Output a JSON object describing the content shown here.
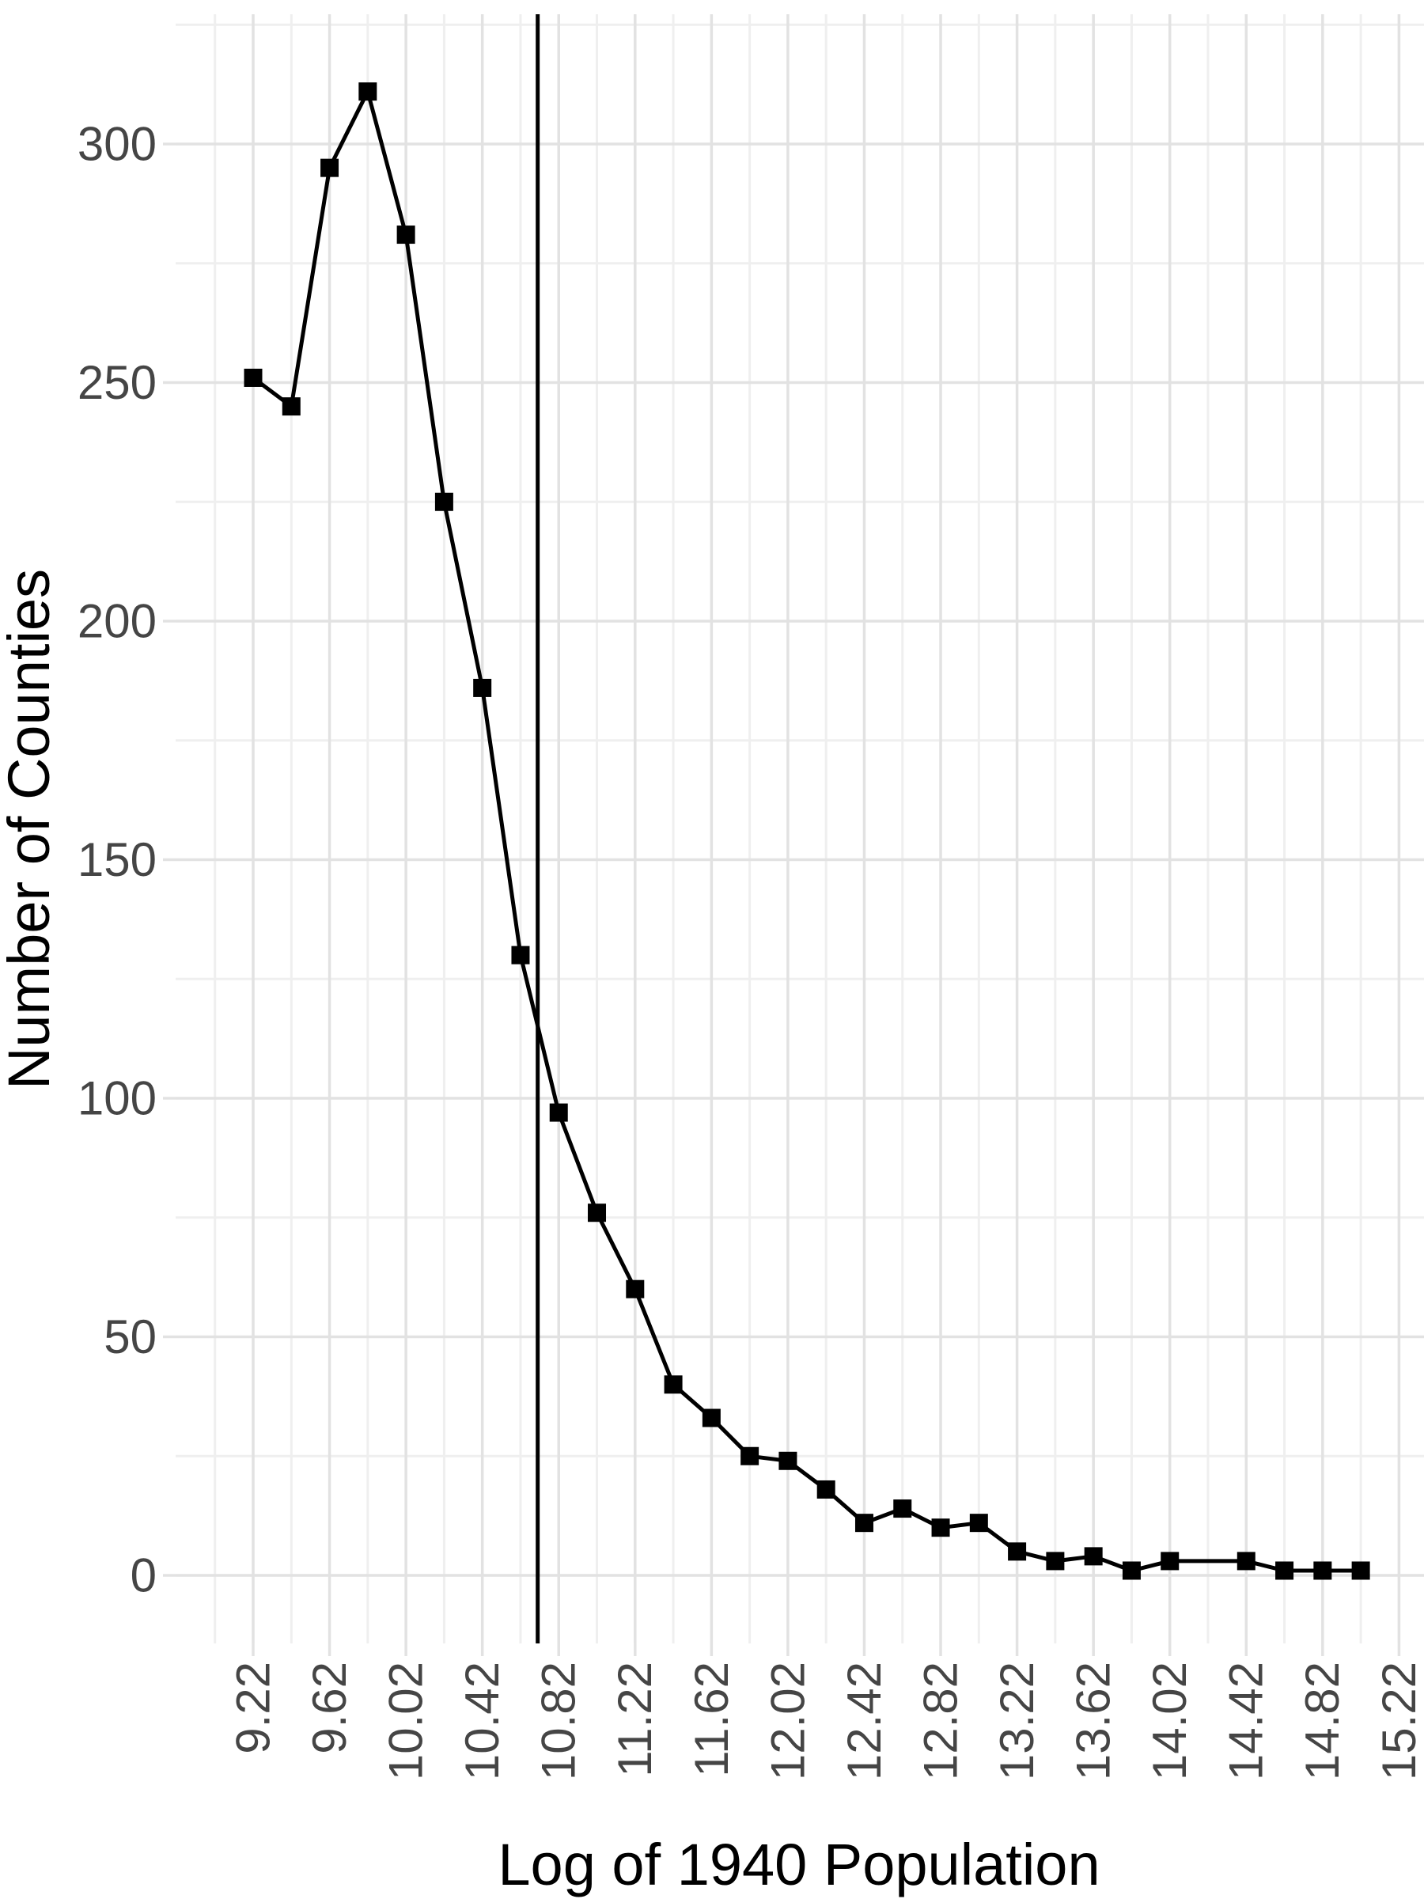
{
  "chart_data": {
    "type": "line",
    "title": "",
    "xlabel": "Log of 1940 Population",
    "ylabel": "Number of Counties",
    "x": [
      9.22,
      9.42,
      9.62,
      9.82,
      10.02,
      10.22,
      10.42,
      10.62,
      10.82,
      11.02,
      11.22,
      11.42,
      11.62,
      11.82,
      12.02,
      12.22,
      12.42,
      12.62,
      12.82,
      13.02,
      13.22,
      13.42,
      13.62,
      13.82,
      14.02,
      14.42,
      14.62,
      14.82,
      15.02
    ],
    "values": [
      251,
      245,
      295,
      311,
      281,
      225,
      186,
      130,
      97,
      76,
      60,
      40,
      33,
      25,
      24,
      18,
      11,
      14,
      10,
      11,
      5,
      3,
      4,
      1,
      3,
      3,
      1,
      1,
      1
    ],
    "note_gap_x": 14.22,
    "vline_x": 10.71,
    "x_tick_labels": [
      "9.22",
      "9.62",
      "10.02",
      "10.42",
      "10.82",
      "11.22",
      "11.62",
      "12.02",
      "12.42",
      "12.82",
      "13.22",
      "13.62",
      "14.02",
      "14.42",
      "14.82",
      "15.22"
    ],
    "x_tick_values": [
      9.22,
      9.62,
      10.02,
      10.42,
      10.82,
      11.22,
      11.62,
      12.02,
      12.42,
      12.82,
      13.22,
      13.62,
      14.02,
      14.42,
      14.82,
      15.22
    ],
    "y_tick_labels": [
      "0",
      "50",
      "100",
      "150",
      "200",
      "250",
      "300"
    ],
    "y_tick_values": [
      0,
      50,
      100,
      150,
      200,
      250,
      300
    ],
    "xlim": [
      8.93,
      15.31
    ],
    "ylim": [
      -14,
      341
    ],
    "grid": "on",
    "legend_position": "none",
    "marker": "square",
    "colors": {
      "series_line": "#000000",
      "marker_fill": "#000000",
      "vline": "#000000",
      "grid_major": "#e2e2e2",
      "grid_minor": "#efefef",
      "tick_text": "#454545",
      "axis_title": "#000000",
      "background": "#ffffff"
    }
  }
}
